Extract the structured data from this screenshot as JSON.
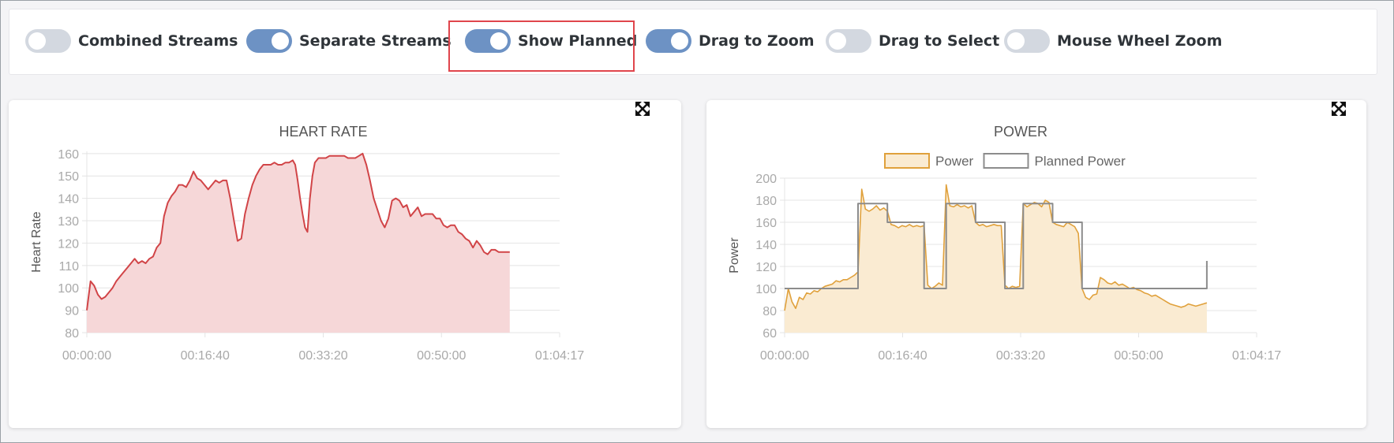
{
  "toggles": [
    {
      "label": "Combined Streams",
      "on": false
    },
    {
      "label": "Separate Streams",
      "on": true
    },
    {
      "label": "Show Planned",
      "on": true,
      "highlighted": true
    },
    {
      "label": "Drag to Zoom",
      "on": true
    },
    {
      "label": "Drag to Select",
      "on": false
    },
    {
      "label": "Mouse Wheel Zoom",
      "on": false
    }
  ],
  "colors": {
    "toggle_on": "#6d92c4",
    "toggle_off": "#d3d8e0",
    "highlight_box": "#e0454c",
    "heart_line": "#d14447",
    "heart_fill": "#f6d7d8",
    "power_line": "#e0a13c",
    "power_fill": "#faebd2",
    "planned_line": "#8c8c8c"
  },
  "chart_data": [
    {
      "type": "area",
      "title": "HEART RATE",
      "xlabel": "",
      "ylabel": "Heart Rate",
      "x_ticks": [
        "00:00:00",
        "00:16:40",
        "00:33:20",
        "00:50:00",
        "01:04:17"
      ],
      "y_ticks": [
        80,
        90,
        100,
        110,
        120,
        130,
        140,
        150,
        160
      ],
      "xlim_seconds": [
        0,
        3857
      ],
      "ylim": [
        80,
        161
      ],
      "grid": true,
      "series": [
        {
          "points": [
            [
              0,
              90
            ],
            [
              30,
              103
            ],
            [
              60,
              101
            ],
            [
              90,
              97
            ],
            [
              120,
              95
            ],
            [
              150,
              96
            ],
            [
              180,
              98
            ],
            [
              210,
              100
            ],
            [
              240,
              103
            ],
            [
              270,
              105
            ],
            [
              300,
              107
            ],
            [
              330,
              109
            ],
            [
              360,
              111
            ],
            [
              390,
              113
            ],
            [
              420,
              111
            ],
            [
              450,
              112
            ],
            [
              480,
              111
            ],
            [
              510,
              113
            ],
            [
              540,
              114
            ],
            [
              570,
              118
            ],
            [
              600,
              120
            ],
            [
              630,
              132
            ],
            [
              660,
              138
            ],
            [
              690,
              141
            ],
            [
              720,
              143
            ],
            [
              750,
              146
            ],
            [
              780,
              146
            ],
            [
              810,
              145
            ],
            [
              840,
              148
            ],
            [
              870,
              152
            ],
            [
              900,
              149
            ],
            [
              930,
              148
            ],
            [
              960,
              146
            ],
            [
              990,
              144
            ],
            [
              1020,
              146
            ],
            [
              1050,
              148
            ],
            [
              1080,
              147
            ],
            [
              1110,
              148
            ],
            [
              1140,
              148
            ],
            [
              1170,
              140
            ],
            [
              1200,
              130
            ],
            [
              1230,
              121
            ],
            [
              1260,
              122
            ],
            [
              1290,
              133
            ],
            [
              1320,
              140
            ],
            [
              1350,
              146
            ],
            [
              1380,
              150
            ],
            [
              1410,
              153
            ],
            [
              1440,
              155
            ],
            [
              1470,
              155
            ],
            [
              1500,
              155
            ],
            [
              1530,
              156
            ],
            [
              1560,
              155
            ],
            [
              1590,
              155
            ],
            [
              1620,
              156
            ],
            [
              1650,
              156
            ],
            [
              1680,
              157
            ],
            [
              1700,
              155
            ],
            [
              1720,
              148
            ],
            [
              1740,
              140
            ],
            [
              1760,
              133
            ],
            [
              1780,
              127
            ],
            [
              1800,
              125
            ],
            [
              1820,
              140
            ],
            [
              1840,
              150
            ],
            [
              1860,
              156
            ],
            [
              1890,
              158
            ],
            [
              1920,
              158
            ],
            [
              1950,
              158
            ],
            [
              1980,
              159
            ],
            [
              2010,
              159
            ],
            [
              2040,
              159
            ],
            [
              2070,
              159
            ],
            [
              2100,
              159
            ],
            [
              2130,
              158
            ],
            [
              2160,
              158
            ],
            [
              2190,
              158
            ],
            [
              2220,
              159
            ],
            [
              2250,
              160
            ],
            [
              2280,
              155
            ],
            [
              2310,
              148
            ],
            [
              2340,
              140
            ],
            [
              2370,
              135
            ],
            [
              2400,
              130
            ],
            [
              2430,
              127
            ],
            [
              2460,
              131
            ],
            [
              2490,
              139
            ],
            [
              2520,
              140
            ],
            [
              2550,
              139
            ],
            [
              2580,
              136
            ],
            [
              2610,
              137
            ],
            [
              2640,
              132
            ],
            [
              2670,
              134
            ],
            [
              2700,
              136
            ],
            [
              2730,
              132
            ],
            [
              2760,
              133
            ],
            [
              2790,
              133
            ],
            [
              2820,
              133
            ],
            [
              2850,
              131
            ],
            [
              2880,
              131
            ],
            [
              2910,
              128
            ],
            [
              2940,
              127
            ],
            [
              2970,
              128
            ],
            [
              3000,
              128
            ],
            [
              3030,
              125
            ],
            [
              3060,
              124
            ],
            [
              3090,
              122
            ],
            [
              3120,
              121
            ],
            [
              3150,
              118
            ],
            [
              3180,
              121
            ],
            [
              3210,
              119
            ],
            [
              3240,
              116
            ],
            [
              3270,
              115
            ],
            [
              3300,
              117
            ],
            [
              3330,
              117
            ],
            [
              3360,
              116
            ],
            [
              3390,
              116
            ],
            [
              3420,
              116
            ],
            [
              3450,
              116
            ]
          ]
        }
      ]
    },
    {
      "type": "area",
      "title": "POWER",
      "xlabel": "",
      "ylabel": "Power",
      "legend": [
        "Power",
        "Planned Power"
      ],
      "legend_position": "top",
      "x_ticks": [
        "00:00:00",
        "00:16:40",
        "00:33:20",
        "00:50:00",
        "01:04:17"
      ],
      "y_ticks": [
        60,
        80,
        100,
        120,
        140,
        160,
        180,
        200
      ],
      "xlim_seconds": [
        0,
        3857
      ],
      "ylim": [
        60,
        200
      ],
      "grid": true,
      "series": [
        {
          "name": "Power",
          "points": [
            [
              0,
              80
            ],
            [
              30,
              100
            ],
            [
              60,
              88
            ],
            [
              90,
              82
            ],
            [
              120,
              92
            ],
            [
              150,
              90
            ],
            [
              180,
              96
            ],
            [
              210,
              95
            ],
            [
              240,
              98
            ],
            [
              270,
              97
            ],
            [
              300,
              100
            ],
            [
              330,
              102
            ],
            [
              360,
              103
            ],
            [
              390,
              104
            ],
            [
              420,
              107
            ],
            [
              450,
              106
            ],
            [
              480,
              108
            ],
            [
              510,
              108
            ],
            [
              540,
              110
            ],
            [
              570,
              112
            ],
            [
              600,
              115
            ],
            [
              630,
              190
            ],
            [
              660,
              172
            ],
            [
              690,
              170
            ],
            [
              720,
              172
            ],
            [
              750,
              175
            ],
            [
              780,
              171
            ],
            [
              810,
              173
            ],
            [
              840,
              170
            ],
            [
              870,
              158
            ],
            [
              900,
              157
            ],
            [
              930,
              155
            ],
            [
              960,
              157
            ],
            [
              990,
              156
            ],
            [
              1020,
              158
            ],
            [
              1050,
              156
            ],
            [
              1080,
              157
            ],
            [
              1110,
              156
            ],
            [
              1140,
              157
            ],
            [
              1170,
              103
            ],
            [
              1200,
              100
            ],
            [
              1230,
              102
            ],
            [
              1260,
              105
            ],
            [
              1290,
              103
            ],
            [
              1320,
              194
            ],
            [
              1350,
              175
            ],
            [
              1380,
              174
            ],
            [
              1410,
              176
            ],
            [
              1440,
              174
            ],
            [
              1470,
              175
            ],
            [
              1500,
              173
            ],
            [
              1530,
              175
            ],
            [
              1560,
              160
            ],
            [
              1590,
              157
            ],
            [
              1620,
              158
            ],
            [
              1650,
              156
            ],
            [
              1680,
              157
            ],
            [
              1710,
              158
            ],
            [
              1740,
              157
            ],
            [
              1770,
              157
            ],
            [
              1800,
              103
            ],
            [
              1830,
              100
            ],
            [
              1860,
              102
            ],
            [
              1890,
              101
            ],
            [
              1920,
              102
            ],
            [
              1950,
              177
            ],
            [
              1980,
              174
            ],
            [
              2010,
              176
            ],
            [
              2040,
              178
            ],
            [
              2070,
              177
            ],
            [
              2100,
              174
            ],
            [
              2130,
              180
            ],
            [
              2160,
              178
            ],
            [
              2190,
              160
            ],
            [
              2220,
              158
            ],
            [
              2250,
              157
            ],
            [
              2280,
              156
            ],
            [
              2310,
              160
            ],
            [
              2340,
              158
            ],
            [
              2370,
              156
            ],
            [
              2400,
              150
            ],
            [
              2430,
              100
            ],
            [
              2460,
              92
            ],
            [
              2490,
              90
            ],
            [
              2520,
              94
            ],
            [
              2550,
              95
            ],
            [
              2580,
              110
            ],
            [
              2610,
              108
            ],
            [
              2640,
              105
            ],
            [
              2670,
              104
            ],
            [
              2700,
              106
            ],
            [
              2730,
              103
            ],
            [
              2760,
              104
            ],
            [
              2790,
              102
            ],
            [
              2820,
              100
            ],
            [
              2850,
              101
            ],
            [
              2880,
              99
            ],
            [
              2910,
              98
            ],
            [
              2940,
              96
            ],
            [
              2970,
              95
            ],
            [
              3000,
              93
            ],
            [
              3030,
              94
            ],
            [
              3060,
              92
            ],
            [
              3090,
              90
            ],
            [
              3120,
              88
            ],
            [
              3150,
              86
            ],
            [
              3180,
              85
            ],
            [
              3210,
              84
            ],
            [
              3240,
              83
            ],
            [
              3270,
              84
            ],
            [
              3300,
              86
            ],
            [
              3330,
              85
            ],
            [
              3360,
              84
            ],
            [
              3390,
              85
            ],
            [
              3420,
              86
            ],
            [
              3450,
              87
            ]
          ]
        },
        {
          "name": "Planned Power",
          "points": [
            [
              0,
              100
            ],
            [
              600,
              100
            ],
            [
              600,
              177
            ],
            [
              840,
              177
            ],
            [
              840,
              160
            ],
            [
              1140,
              160
            ],
            [
              1140,
              100
            ],
            [
              1320,
              100
            ],
            [
              1320,
              177
            ],
            [
              1560,
              177
            ],
            [
              1560,
              160
            ],
            [
              1800,
              160
            ],
            [
              1800,
              100
            ],
            [
              1950,
              100
            ],
            [
              1950,
              177
            ],
            [
              2190,
              177
            ],
            [
              2190,
              160
            ],
            [
              2430,
              160
            ],
            [
              2430,
              100
            ],
            [
              3450,
              100
            ],
            [
              3450,
              125
            ]
          ]
        }
      ]
    }
  ]
}
